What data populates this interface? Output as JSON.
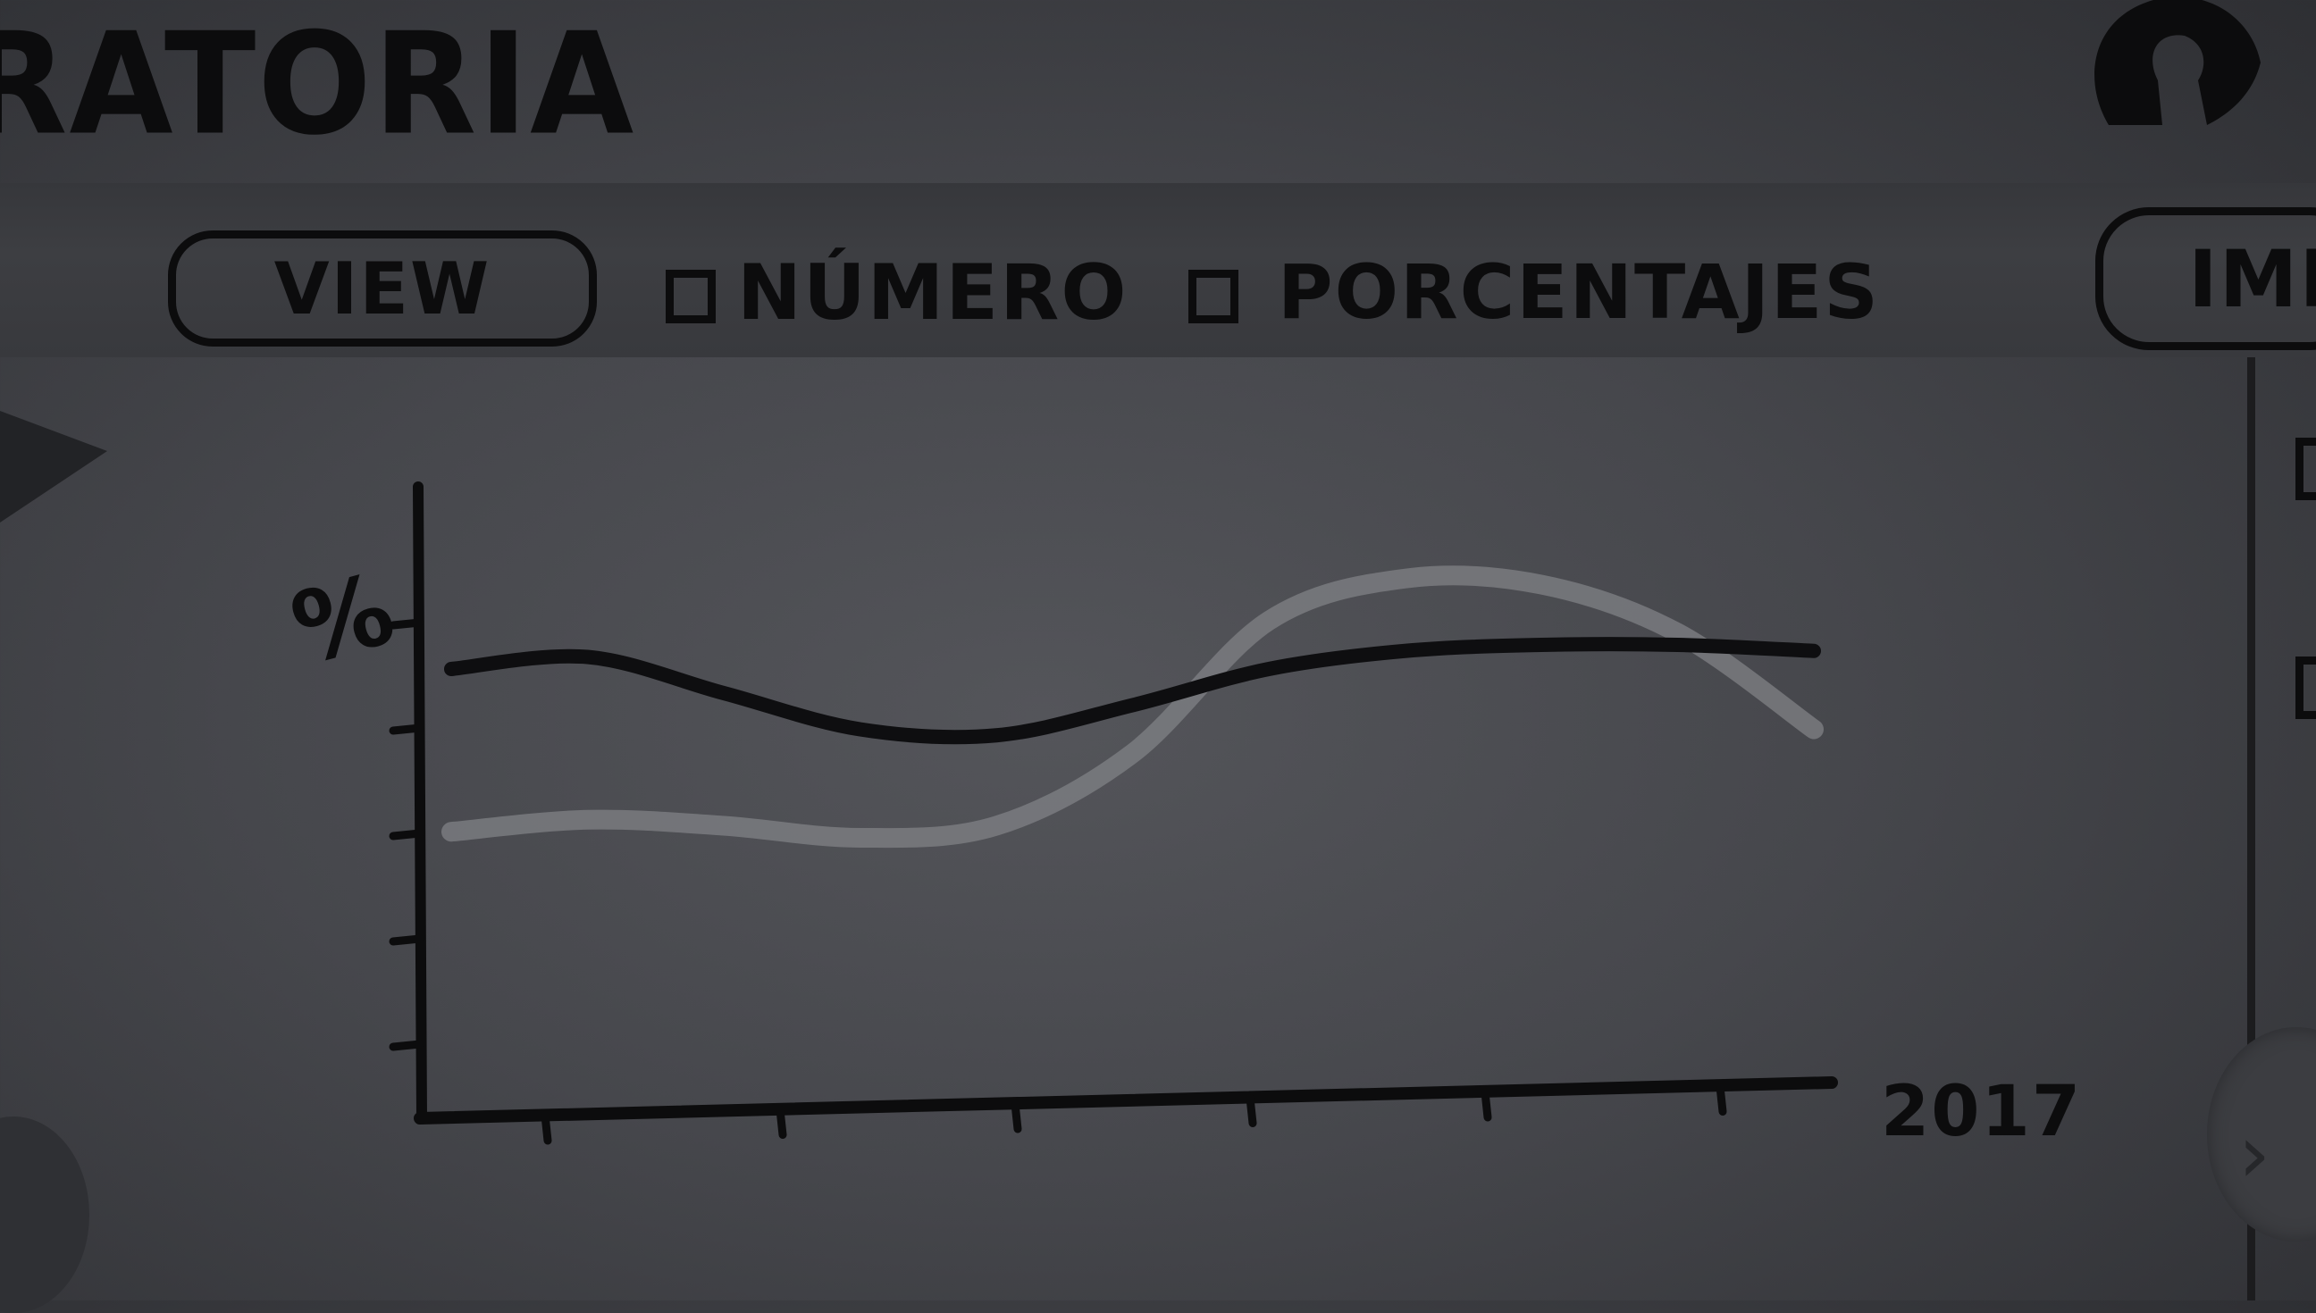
{
  "header": {
    "title": "RATORIA"
  },
  "toolbar": {
    "view_label": "VIEW",
    "numero_label": "NÚMERO",
    "porcentajes_label": "PORCENTAJES",
    "imp_label": "IMP"
  },
  "chart_data": {
    "type": "line",
    "y_tick_label": "%",
    "x_end_label": "2017",
    "x_ticks_count": 6,
    "y_ticks_count": 5,
    "series": [
      {
        "values": [
          72,
          74,
          68,
          62,
          61,
          66,
          72,
          75,
          76,
          76,
          75
        ]
      },
      {
        "values": [
          45,
          47,
          46,
          44,
          46,
          58,
          80,
          87,
          86,
          78,
          62
        ]
      }
    ],
    "ylim": [
      0,
      100
    ],
    "colors": [
      "#0e0e10",
      "#808285"
    ]
  }
}
